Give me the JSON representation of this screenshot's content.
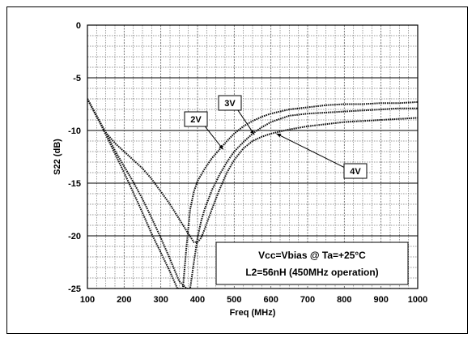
{
  "chart_data": {
    "type": "line",
    "xlabel": "Freq (MHz)",
    "ylabel": "S22 (dB)",
    "xlim": [
      100,
      1000
    ],
    "ylim": [
      -25,
      0
    ],
    "x_ticks": [
      "100",
      "200",
      "300",
      "400",
      "500",
      "600",
      "700",
      "800",
      "900",
      "1000"
    ],
    "y_ticks": [
      "0",
      "-5",
      "-10",
      "-15",
      "-20",
      "-25"
    ],
    "grid": true,
    "note_lines": [
      "Vcc=Vbias @ Ta=+25°C",
      "L2=56nH (450MHz operation)"
    ],
    "series": [
      {
        "name": "2V",
        "x": [
          100,
          125,
          150,
          175,
          200,
          225,
          250,
          275,
          300,
          325,
          345,
          360,
          370,
          380,
          390,
          400,
          420,
          440,
          460,
          480,
          500,
          525,
          550,
          575,
          600,
          650,
          700,
          750,
          800,
          850,
          900,
          950,
          1000
        ],
        "y": [
          -7,
          -8.6,
          -10.4,
          -12.2,
          -14,
          -15.9,
          -17.8,
          -19.8,
          -21.6,
          -23.4,
          -25,
          -25,
          -21,
          -17.5,
          -15.8,
          -14.8,
          -13.6,
          -12.6,
          -11.8,
          -11,
          -10.3,
          -9.6,
          -9.1,
          -8.7,
          -8.4,
          -8,
          -7.8,
          -7.6,
          -7.5,
          -7.5,
          -7.4,
          -7.4,
          -7.3
        ]
      },
      {
        "name": "3V",
        "x": [
          100,
          125,
          150,
          175,
          200,
          225,
          250,
          275,
          300,
          325,
          350,
          370,
          380,
          390,
          400,
          410,
          420,
          440,
          460,
          480,
          500,
          525,
          550,
          575,
          600,
          650,
          700,
          750,
          800,
          850,
          900,
          950,
          1000
        ],
        "y": [
          -7,
          -8.6,
          -10.2,
          -11.9,
          -13.4,
          -14.9,
          -16.5,
          -18.3,
          -20.2,
          -22.2,
          -24.3,
          -25,
          -25,
          -22.5,
          -20.2,
          -18.6,
          -17.4,
          -15.6,
          -14.2,
          -13,
          -12,
          -11.1,
          -10.3,
          -9.7,
          -9.2,
          -8.6,
          -8.4,
          -8.3,
          -8.2,
          -8.1,
          -8,
          -7.9,
          -7.9
        ]
      },
      {
        "name": "4V",
        "x": [
          100,
          125,
          150,
          175,
          200,
          225,
          250,
          275,
          300,
          325,
          350,
          375,
          390,
          400,
          410,
          420,
          440,
          460,
          480,
          500,
          525,
          550,
          575,
          600,
          650,
          700,
          750,
          800,
          850,
          900,
          950,
          1000
        ],
        "y": [
          -7,
          -8.7,
          -10.2,
          -11.2,
          -12,
          -12.8,
          -13.6,
          -14.6,
          -15.8,
          -17,
          -18.4,
          -19.8,
          -20.6,
          -20.6,
          -20.2,
          -19.3,
          -17.4,
          -15.6,
          -14,
          -12.8,
          -11.7,
          -11,
          -10.6,
          -10.3,
          -9.9,
          -9.6,
          -9.4,
          -9.2,
          -9.1,
          -9,
          -8.9,
          -8.8
        ]
      }
    ]
  }
}
